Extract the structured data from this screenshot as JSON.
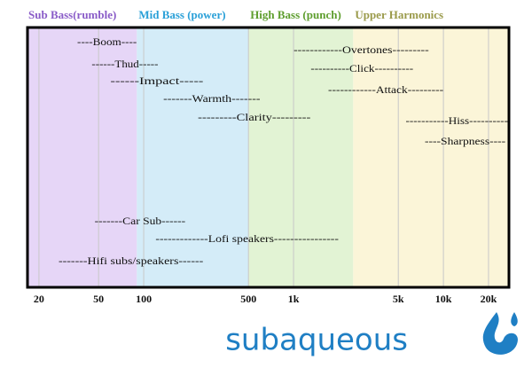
{
  "chart_data": {
    "type": "range",
    "log_x": true,
    "xlim": [
      17,
      27000
    ],
    "xticks": [
      20,
      50,
      100,
      500,
      {
        "value": 1000,
        "label": "1k"
      },
      {
        "value": 5000,
        "label": "5k"
      },
      {
        "value": 10000,
        "label": "10k"
      },
      {
        "value": 20000,
        "label": "20k"
      }
    ],
    "grid": true,
    "bands": [
      {
        "name": "Sub Bass(rumble)",
        "range": [
          17,
          90
        ],
        "color": "#e6d6f7",
        "label_color": "#8a5cc8"
      },
      {
        "name": "Mid Bass (power)",
        "range": [
          90,
          500
        ],
        "color": "#d4ecf8",
        "label_color": "#2aa0d8"
      },
      {
        "name": "High Bass (punch)",
        "range": [
          500,
          2500
        ],
        "color": "#e2f3d4",
        "label_color": "#5e9e2e"
      },
      {
        "name": "Upper Harmonics",
        "range": [
          2500,
          27000
        ],
        "color": "#fbf5d8",
        "label_color": "#9a9a4a"
      }
    ],
    "items": [
      {
        "label": "----Boom----",
        "range": [
          36,
          90
        ]
      },
      {
        "label": "------Thud-----",
        "range": [
          45,
          125
        ]
      },
      {
        "label": "------Impact-----",
        "range": [
          60,
          250
        ]
      },
      {
        "label": "-------Warmth-------",
        "range": [
          135,
          600
        ]
      },
      {
        "label": "---------Clarity---------",
        "range": [
          230,
          1300
        ]
      },
      {
        "label": "------------Overtones---------",
        "range": [
          1000,
          8000
        ]
      },
      {
        "label": "----------Click----------",
        "range": [
          1300,
          6300
        ]
      },
      {
        "label": "------------Attack---------",
        "range": [
          1700,
          10000
        ]
      },
      {
        "label": "-----------Hiss----------",
        "range": [
          5600,
          27000
        ]
      },
      {
        "label": "----Sharpness----",
        "range": [
          7500,
          26000
        ]
      },
      {
        "label": "-------Car Sub------",
        "range": [
          47,
          190
        ]
      },
      {
        "label": "-------------Lofi speakers----------------",
        "range": [
          120,
          2000
        ]
      },
      {
        "label": "-------Hifi subs/speakers------",
        "range": [
          27,
          250
        ]
      }
    ],
    "logo": "subaqueous"
  }
}
